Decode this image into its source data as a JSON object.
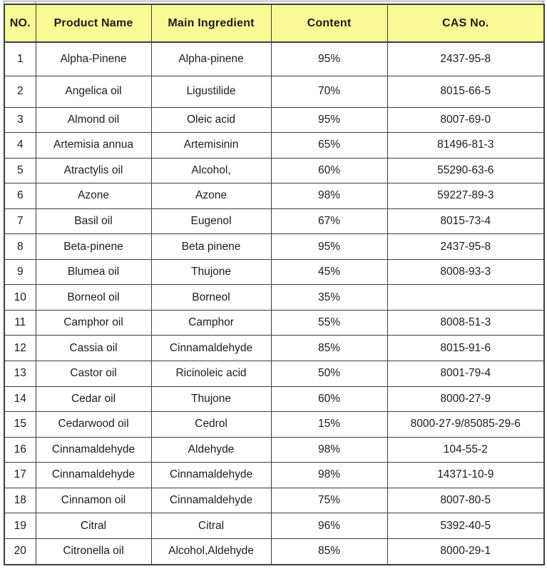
{
  "table": {
    "headers": [
      "NO.",
      "Product Name",
      "Main Ingredient",
      "Content",
      "CAS No."
    ],
    "rows": [
      {
        "no": "1",
        "product": "Alpha-Pinene",
        "ingredient": "Alpha-pinene",
        "content": "95%",
        "cas": "2437-95-8"
      },
      {
        "no": "2",
        "product": "Angelica oil",
        "ingredient": "Ligustilide",
        "content": "70%",
        "cas": "8015-66-5"
      },
      {
        "no": "3",
        "product": "Almond oil",
        "ingredient": "Oleic acid",
        "content": "95%",
        "cas": "8007-69-0"
      },
      {
        "no": "4",
        "product": "Artemisia annua",
        "ingredient": "Artemisinin",
        "content": "65%",
        "cas": "81496-81-3"
      },
      {
        "no": "5",
        "product": "Atractylis oil",
        "ingredient": "Alcohol,",
        "content": "60%",
        "cas": "55290-63-6"
      },
      {
        "no": "6",
        "product": "Azone",
        "ingredient": "Azone",
        "content": "98%",
        "cas": "59227-89-3"
      },
      {
        "no": "7",
        "product": "Basil oil",
        "ingredient": "Eugenol",
        "content": "67%",
        "cas": "8015-73-4"
      },
      {
        "no": "8",
        "product": "Beta-pinene",
        "ingredient": "Beta pinene",
        "content": "95%",
        "cas": "2437-95-8"
      },
      {
        "no": "9",
        "product": "Blumea oil",
        "ingredient": "Thujone",
        "content": "45%",
        "cas": "8008-93-3"
      },
      {
        "no": "10",
        "product": "Borneol oil",
        "ingredient": "Borneol",
        "content": "35%",
        "cas": ""
      },
      {
        "no": "11",
        "product": "Camphor oil",
        "ingredient": "Camphor",
        "content": "55%",
        "cas": "8008-51-3"
      },
      {
        "no": "12",
        "product": "Cassia oil",
        "ingredient": "Cinnamaldehyde",
        "content": "85%",
        "cas": "8015-91-6"
      },
      {
        "no": "13",
        "product": "Castor oil",
        "ingredient": "Ricinoleic acid",
        "content": "50%",
        "cas": "8001-79-4"
      },
      {
        "no": "14",
        "product": "Cedar oil",
        "ingredient": "Thujone",
        "content": "60%",
        "cas": "8000-27-9"
      },
      {
        "no": "15",
        "product": "Cedarwood oil",
        "ingredient": "Cedrol",
        "content": "15%",
        "cas": "8000-27-9/85085-29-6"
      },
      {
        "no": "16",
        "product": "Cinnamaldehyde",
        "ingredient": "Aldehyde",
        "content": "98%",
        "cas": "104-55-2"
      },
      {
        "no": "17",
        "product": "Cinnamaldehyde",
        "ingredient": "Cinnamaldehyde",
        "content": "98%",
        "cas": "14371-10-9"
      },
      {
        "no": "18",
        "product": "Cinnamon oil",
        "ingredient": "Cinnamaldehyde",
        "content": "75%",
        "cas": "8007-80-5"
      },
      {
        "no": "19",
        "product": "Citral",
        "ingredient": "Citral",
        "content": "96%",
        "cas": "5392-40-5"
      },
      {
        "no": "20",
        "product": "Citronella oil",
        "ingredient": "Alcohol,Aldehyde",
        "content": "85%",
        "cas": "8000-29-1"
      }
    ],
    "colors": {
      "header_bg": "#fafa96",
      "border": "#3d3d3d",
      "text": "#1c1c1c",
      "row_bg": "#ffffff"
    }
  }
}
